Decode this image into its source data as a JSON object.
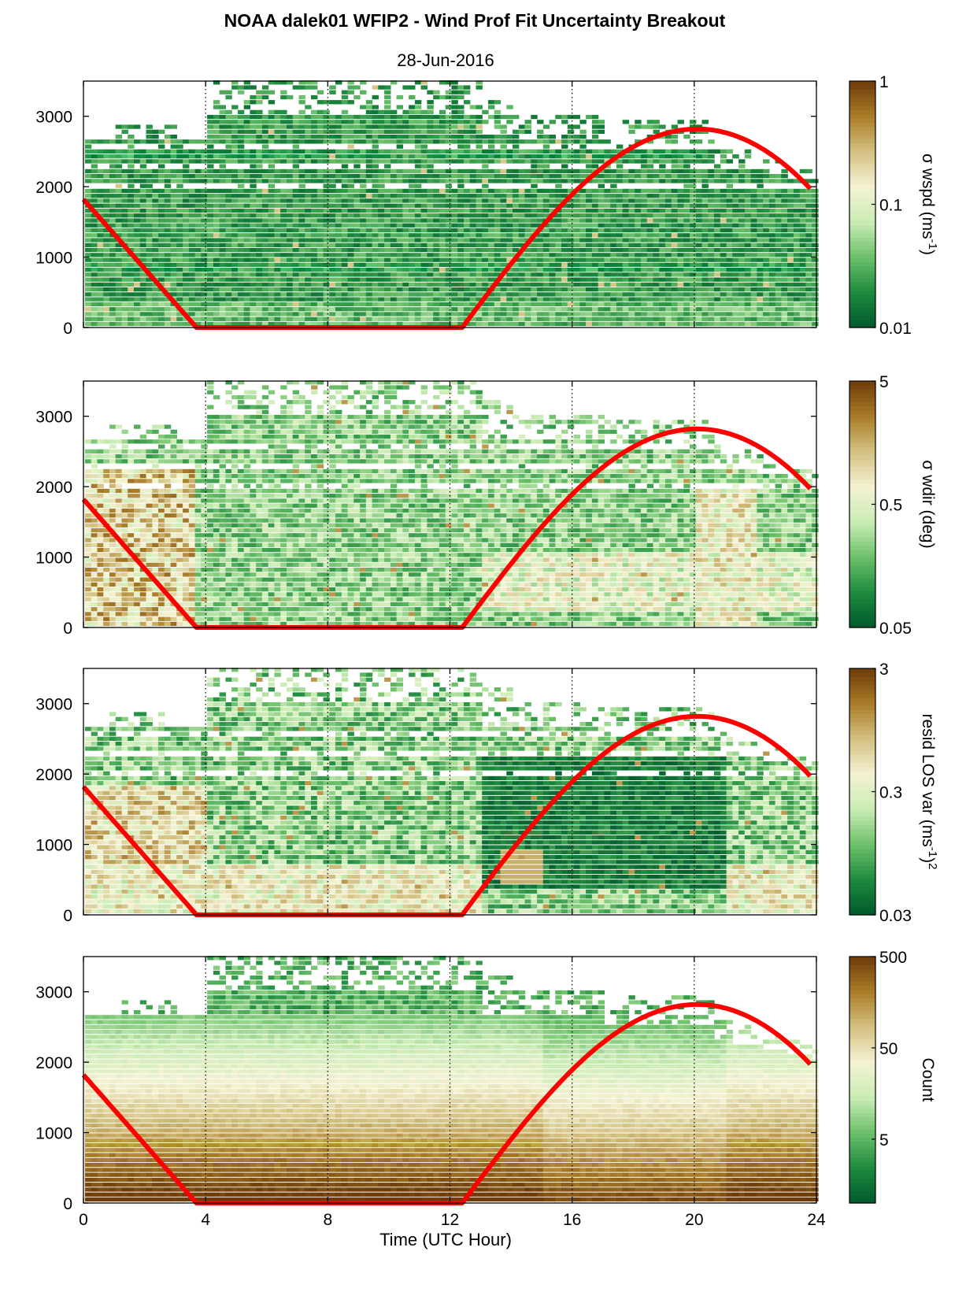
{
  "chart_data": {
    "title": "NOAA dalek01 WFIP2 - Wind Prof Fit Uncertainty Breakout",
    "subtitle": "28-Jun-2016",
    "xlabel": "Time (UTC Hour)",
    "xlim": [
      0,
      24
    ],
    "x_ticks": [
      "0",
      "4",
      "8",
      "12",
      "16",
      "20",
      "24"
    ],
    "vertical_dotted_lines_at_hours": [
      4,
      8,
      12,
      16,
      20
    ],
    "ylim": [
      0,
      3500
    ],
    "y_ticks": [
      "0",
      "1000",
      "2000",
      "3000"
    ],
    "red_curve": {
      "color": "#ff0000",
      "description_points": [
        [
          0,
          1820
        ],
        [
          3.7,
          0
        ],
        [
          12.4,
          0
        ],
        [
          16,
          1700
        ],
        [
          20.1,
          2820
        ],
        [
          23.9,
          1930
        ]
      ]
    },
    "colormap": [
      "#00592c",
      "#1e8a3e",
      "#6cc06a",
      "#c9ecb4",
      "#f4f2d2",
      "#d4c182",
      "#a97c28",
      "#6e3c0a"
    ],
    "charts": [
      {
        "type": "heatmap",
        "name": "wspd",
        "colorbar_label": "σ wspd (ms",
        "colorbar_sup": "-1",
        "colorbar_tail": ")",
        "colorbar_ticks": [
          "1",
          "0.1",
          "0.01"
        ],
        "colorbar_scale": "log",
        "colorbar_range": [
          0.01,
          1
        ]
      },
      {
        "type": "heatmap",
        "name": "wdir",
        "colorbar_label": "σ wdir (deg)",
        "colorbar_ticks": [
          "5",
          "0.5",
          "0.05"
        ],
        "colorbar_scale": "log",
        "colorbar_range": [
          0.05,
          5
        ]
      },
      {
        "type": "heatmap",
        "name": "resid",
        "colorbar_label": "resid LOS var (ms",
        "colorbar_sup": "-1",
        "colorbar_tail": ")",
        "colorbar_sup2": "2",
        "colorbar_ticks": [
          "3",
          "0.3",
          "0.03"
        ],
        "colorbar_scale": "log",
        "colorbar_range": [
          0.03,
          3
        ]
      },
      {
        "type": "heatmap",
        "name": "count",
        "colorbar_label": "Count",
        "colorbar_ticks": [
          "500",
          "50",
          "5"
        ],
        "colorbar_scale": "log",
        "colorbar_range": [
          1,
          500
        ]
      }
    ]
  }
}
